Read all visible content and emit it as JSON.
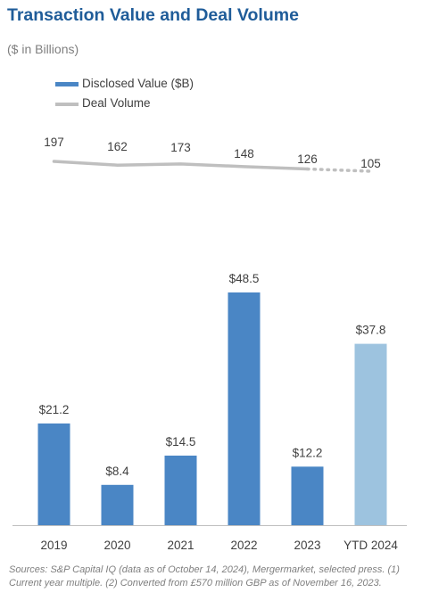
{
  "title": "Transaction Value and Deal Volume",
  "subtitle": "($ in Billions)",
  "legend": {
    "value_label": "Disclosed Value ($B)",
    "volume_label": "Deal Volume"
  },
  "colors": {
    "title": "#1F5C99",
    "bar": "#4A86C5",
    "bar_ytd": "#9DC3DF",
    "line": "#BFBFBF"
  },
  "chart_data": {
    "type": "bar",
    "categories": [
      "2019",
      "2020",
      "2021",
      "2022",
      "2023",
      "YTD 2024"
    ],
    "series": [
      {
        "name": "Disclosed Value ($B)",
        "type": "bar",
        "values": [
          21.2,
          8.4,
          14.5,
          48.5,
          12.2,
          37.8
        ],
        "labels": [
          "$21.2",
          "$8.4",
          "$14.5",
          "$48.5",
          "$12.2",
          "$37.8"
        ]
      },
      {
        "name": "Deal Volume",
        "type": "line",
        "values": [
          197,
          162,
          173,
          148,
          126,
          105
        ],
        "labels": [
          "197",
          "162",
          "173",
          "148",
          "126",
          "105"
        ],
        "projected_last_segment": true
      }
    ]
  },
  "footnote": "Sources: S&P Capital IQ (data as of October 14, 2024), Mergermarket, selected press. (1) Current year multiple. (2) Converted from £570 million GBP as of November 16, 2023."
}
